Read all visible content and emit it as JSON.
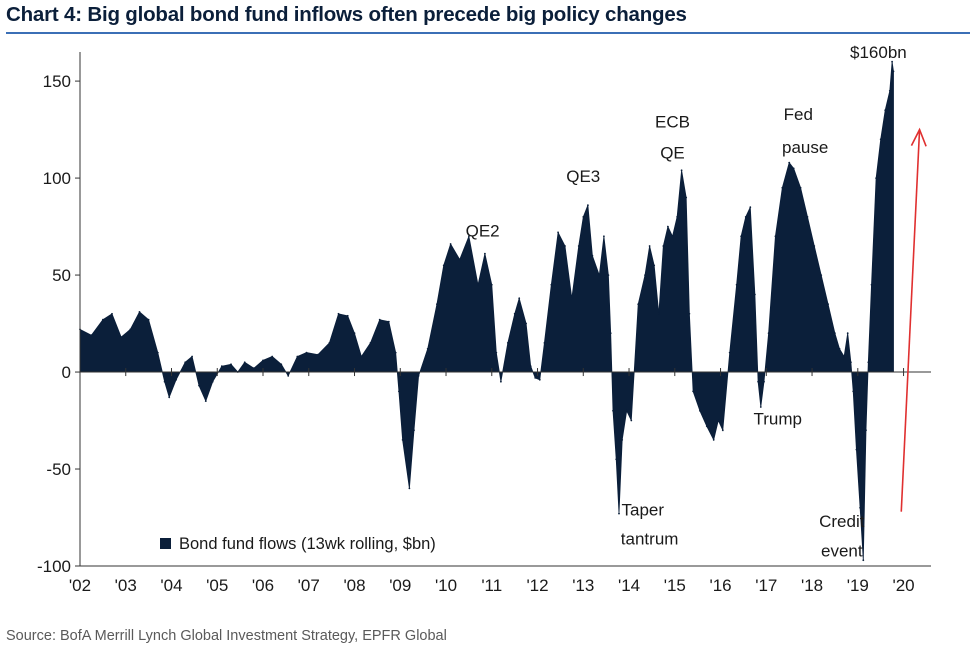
{
  "header": {
    "title": "Chart 4: Big global bond fund inflows often precede big policy changes"
  },
  "footer": {
    "source": "Source:  BofA Merrill Lynch Global Investment Strategy, EPFR Global"
  },
  "chart_data": {
    "type": "area",
    "title": "Chart 4: Big global bond fund inflows often precede big policy changes",
    "xlabel": "",
    "ylabel": "",
    "xlim": [
      2002,
      2020.6
    ],
    "ylim": [
      -100,
      165
    ],
    "yticks": [
      150,
      100,
      50,
      0,
      -50,
      -100
    ],
    "xticks": [
      2002,
      2003,
      2004,
      2005,
      2006,
      2007,
      2008,
      2009,
      2010,
      2011,
      2012,
      2013,
      2014,
      2015,
      2016,
      2017,
      2018,
      2019,
      2020
    ],
    "xtick_labels": [
      "'02",
      "'03",
      "'04",
      "'05",
      "'06",
      "'07",
      "'08",
      "'09",
      "'10",
      "'11",
      "'12",
      "'13",
      "'14",
      "'15",
      "'16",
      "'17",
      "'18",
      "'19",
      "'20"
    ],
    "grid": false,
    "legend": {
      "position": "bottom-left"
    },
    "colors": {
      "series": "#0b1f3a",
      "arrow": "#e03030"
    },
    "series": [
      {
        "name": "Bond fund flows (13wk rolling, $bn)",
        "points": [
          [
            2002.0,
            22
          ],
          [
            2002.25,
            19
          ],
          [
            2002.5,
            27
          ],
          [
            2002.7,
            30
          ],
          [
            2002.9,
            18
          ],
          [
            2003.1,
            22
          ],
          [
            2003.3,
            31
          ],
          [
            2003.5,
            27
          ],
          [
            2003.7,
            10
          ],
          [
            2003.85,
            -5
          ],
          [
            2003.95,
            -13
          ],
          [
            2004.1,
            -4
          ],
          [
            2004.3,
            5
          ],
          [
            2004.45,
            8
          ],
          [
            2004.6,
            -7
          ],
          [
            2004.75,
            -15
          ],
          [
            2004.9,
            -5
          ],
          [
            2005.1,
            3
          ],
          [
            2005.3,
            4
          ],
          [
            2005.45,
            0
          ],
          [
            2005.6,
            5
          ],
          [
            2005.8,
            2
          ],
          [
            2006.0,
            6
          ],
          [
            2006.2,
            8
          ],
          [
            2006.4,
            4
          ],
          [
            2006.55,
            -2
          ],
          [
            2006.75,
            8
          ],
          [
            2006.95,
            10
          ],
          [
            2007.2,
            9
          ],
          [
            2007.45,
            15
          ],
          [
            2007.65,
            30
          ],
          [
            2007.85,
            29
          ],
          [
            2008.0,
            20
          ],
          [
            2008.15,
            8
          ],
          [
            2008.35,
            15
          ],
          [
            2008.55,
            27
          ],
          [
            2008.75,
            26
          ],
          [
            2008.9,
            10
          ],
          [
            2008.97,
            -10
          ],
          [
            2009.05,
            -35
          ],
          [
            2009.2,
            -60
          ],
          [
            2009.3,
            -30
          ],
          [
            2009.4,
            -2
          ],
          [
            2009.6,
            12
          ],
          [
            2009.8,
            35
          ],
          [
            2009.95,
            55
          ],
          [
            2010.1,
            66
          ],
          [
            2010.3,
            58
          ],
          [
            2010.5,
            70
          ],
          [
            2010.7,
            45
          ],
          [
            2010.85,
            61
          ],
          [
            2011.0,
            45
          ],
          [
            2011.1,
            10
          ],
          [
            2011.2,
            -5
          ],
          [
            2011.35,
            15
          ],
          [
            2011.5,
            30
          ],
          [
            2011.6,
            38
          ],
          [
            2011.75,
            25
          ],
          [
            2011.85,
            3
          ],
          [
            2011.95,
            -3
          ],
          [
            2012.05,
            -4
          ],
          [
            2012.15,
            15
          ],
          [
            2012.3,
            45
          ],
          [
            2012.45,
            72
          ],
          [
            2012.6,
            65
          ],
          [
            2012.75,
            38
          ],
          [
            2012.9,
            65
          ],
          [
            2013.0,
            80
          ],
          [
            2013.1,
            86
          ],
          [
            2013.2,
            60
          ],
          [
            2013.35,
            50
          ],
          [
            2013.45,
            70
          ],
          [
            2013.55,
            50
          ],
          [
            2013.6,
            20
          ],
          [
            2013.65,
            -20
          ],
          [
            2013.72,
            -45
          ],
          [
            2013.78,
            -73
          ],
          [
            2013.85,
            -35
          ],
          [
            2013.95,
            -20
          ],
          [
            2014.05,
            -25
          ],
          [
            2014.2,
            35
          ],
          [
            2014.35,
            50
          ],
          [
            2014.45,
            65
          ],
          [
            2014.55,
            55
          ],
          [
            2014.65,
            30
          ],
          [
            2014.75,
            65
          ],
          [
            2014.85,
            75
          ],
          [
            2014.95,
            70
          ],
          [
            2015.05,
            80
          ],
          [
            2015.15,
            104
          ],
          [
            2015.25,
            90
          ],
          [
            2015.32,
            30
          ],
          [
            2015.4,
            -10
          ],
          [
            2015.55,
            -20
          ],
          [
            2015.7,
            -28
          ],
          [
            2015.85,
            -35
          ],
          [
            2015.95,
            -25
          ],
          [
            2016.05,
            -30
          ],
          [
            2016.2,
            10
          ],
          [
            2016.35,
            45
          ],
          [
            2016.45,
            70
          ],
          [
            2016.55,
            80
          ],
          [
            2016.65,
            85
          ],
          [
            2016.75,
            40
          ],
          [
            2016.82,
            -5
          ],
          [
            2016.88,
            -18
          ],
          [
            2016.95,
            -5
          ],
          [
            2017.05,
            20
          ],
          [
            2017.2,
            70
          ],
          [
            2017.35,
            95
          ],
          [
            2017.5,
            108
          ],
          [
            2017.6,
            105
          ],
          [
            2017.75,
            95
          ],
          [
            2017.9,
            80
          ],
          [
            2018.05,
            65
          ],
          [
            2018.2,
            50
          ],
          [
            2018.35,
            35
          ],
          [
            2018.5,
            20
          ],
          [
            2018.6,
            12
          ],
          [
            2018.7,
            8
          ],
          [
            2018.78,
            20
          ],
          [
            2018.85,
            5
          ],
          [
            2018.9,
            -10
          ],
          [
            2018.97,
            -40
          ],
          [
            2019.05,
            -70
          ],
          [
            2019.12,
            -97
          ],
          [
            2019.18,
            -30
          ],
          [
            2019.23,
            5
          ],
          [
            2019.3,
            45
          ],
          [
            2019.4,
            100
          ],
          [
            2019.5,
            120
          ],
          [
            2019.6,
            135
          ],
          [
            2019.7,
            145
          ],
          [
            2019.75,
            160
          ],
          [
            2019.78,
            155
          ]
        ]
      }
    ],
    "annotations": [
      {
        "text": "QE2",
        "x": 2010.8,
        "y": 70
      },
      {
        "text": "QE3",
        "x": 2013.0,
        "y": 98
      },
      {
        "text": "ECB",
        "x": 2014.95,
        "y": 126
      },
      {
        "text": "QE",
        "x": 2014.95,
        "y": 110
      },
      {
        "text": "Taper",
        "x": 2014.3,
        "y": -74
      },
      {
        "text": "tantrum",
        "x": 2014.45,
        "y": -89
      },
      {
        "text": "Fed",
        "x": 2017.7,
        "y": 130
      },
      {
        "text": "pause",
        "x": 2017.85,
        "y": 113
      },
      {
        "text": "Trump",
        "x": 2017.25,
        "y": -27
      },
      {
        "text": "Credit",
        "x": 2018.65,
        "y": -80
      },
      {
        "text": "event",
        "x": 2018.65,
        "y": -95
      },
      {
        "text": "$160bn",
        "x": 2019.45,
        "y": 162
      }
    ],
    "arrow": {
      "from": [
        2019.95,
        -72
      ],
      "to": [
        2020.35,
        125
      ]
    }
  }
}
